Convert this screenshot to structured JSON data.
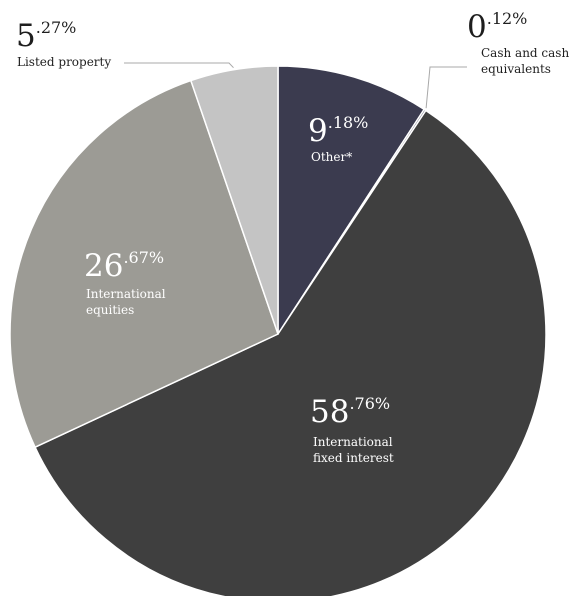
{
  "chart_data": {
    "type": "pie",
    "slices": [
      {
        "label": "Other*",
        "whole": "9",
        "decimal": ".18%",
        "value": 9.18,
        "color": "#3b3b4f",
        "text_color": "#ffffff",
        "label_inside": true
      },
      {
        "label": "Cash and cash equivalents",
        "label_lines": [
          "Cash and cash",
          "equivalents"
        ],
        "whole": "0",
        "decimal": ".12%",
        "value": 0.12,
        "color": "#66667a",
        "text_color": "#1e1e1e",
        "label_inside": false
      },
      {
        "label": "International fixed interest",
        "label_lines": [
          "International",
          "fixed interest"
        ],
        "whole": "58",
        "decimal": ".76%",
        "value": 58.76,
        "color": "#3f3f3f",
        "text_color": "#ffffff",
        "label_inside": true
      },
      {
        "label": "International equities",
        "label_lines": [
          "International",
          "equities"
        ],
        "whole": "26",
        "decimal": ".67%",
        "value": 26.67,
        "color": "#9c9b95",
        "text_color": "#ffffff",
        "label_inside": true
      },
      {
        "label": "Listed property",
        "label_lines": [
          "Listed property"
        ],
        "whole": "5",
        "decimal": ".27%",
        "value": 5.27,
        "color": "#c4c4c4",
        "text_color": "#1e1e1e",
        "label_inside": false
      }
    ],
    "start_angle_deg": 0,
    "direction": "clockwise",
    "legend": "none"
  }
}
